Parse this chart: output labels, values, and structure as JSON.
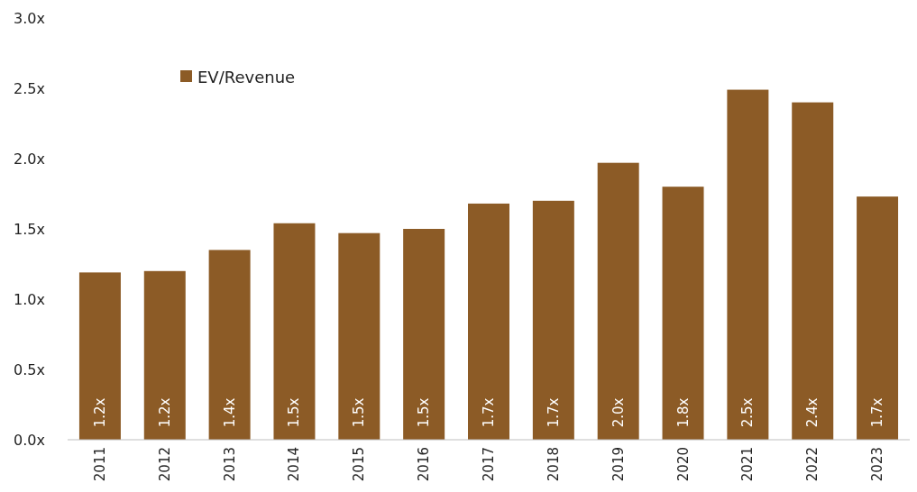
{
  "chart_data": {
    "type": "bar",
    "categories": [
      "2011",
      "2012",
      "2013",
      "2014",
      "2015",
      "2016",
      "2017",
      "2018",
      "2019",
      "2020",
      "2021",
      "2022",
      "2023"
    ],
    "series": [
      {
        "name": "EV/Revenue",
        "color": "#8c5b26",
        "values": [
          1.19,
          1.2,
          1.35,
          1.54,
          1.47,
          1.5,
          1.68,
          1.7,
          1.97,
          1.8,
          2.49,
          2.4,
          1.73
        ],
        "value_labels": [
          "1.2x",
          "1.2x",
          "1.4x",
          "1.5x",
          "1.5x",
          "1.5x",
          "1.7x",
          "1.7x",
          "2.0x",
          "1.8x",
          "2.5x",
          "2.4x",
          "1.7x"
        ]
      }
    ],
    "ylim": [
      0,
      3
    ],
    "yticks": [
      {
        "value": 0,
        "label": "0.0x"
      },
      {
        "value": 0.5,
        "label": "0.5x"
      },
      {
        "value": 1,
        "label": "1.0x"
      },
      {
        "value": 1.5,
        "label": "1.5x"
      },
      {
        "value": 2,
        "label": "2.0x"
      },
      {
        "value": 2.5,
        "label": "2.5x"
      },
      {
        "value": 3,
        "label": "3.0x"
      }
    ],
    "legend": "top left",
    "grid": false
  }
}
